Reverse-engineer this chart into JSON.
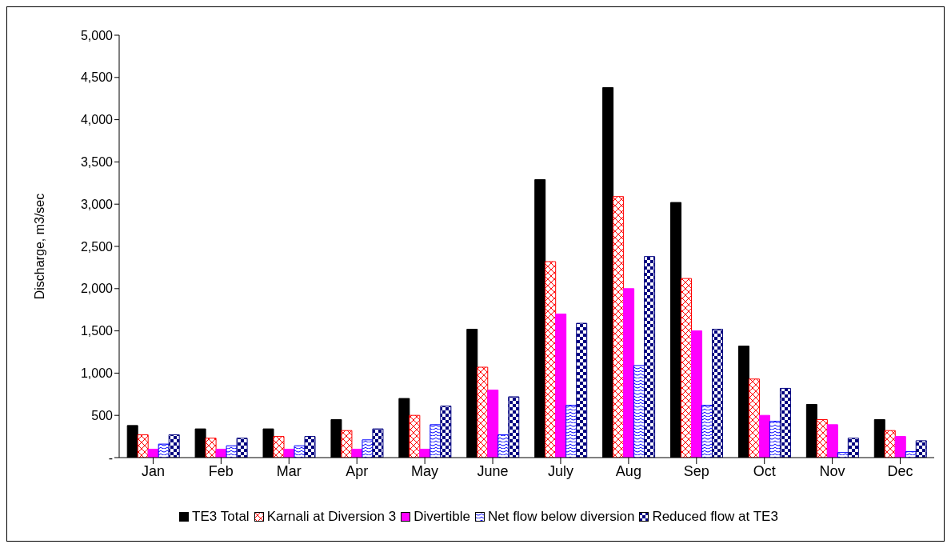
{
  "chart_data": {
    "type": "bar",
    "ylabel": "Discharge, m3/sec",
    "categories": [
      "Jan",
      "Feb",
      "Mar",
      "Apr",
      "May",
      "June",
      "July",
      "Aug",
      "Sep",
      "Oct",
      "Nov",
      "Dec"
    ],
    "series": [
      {
        "name": "TE3 Total",
        "color": "#000000",
        "values": [
          380,
          340,
          340,
          450,
          700,
          1520,
          3290,
          4380,
          3020,
          1320,
          630,
          450
        ]
      },
      {
        "name": "Karnali at Diversion 3",
        "color": "#ff0000",
        "values": [
          270,
          230,
          250,
          320,
          500,
          1070,
          2320,
          3090,
          2120,
          930,
          450,
          320
        ]
      },
      {
        "name": "Divertible",
        "color": "#ff00ff",
        "values": [
          100,
          100,
          100,
          100,
          100,
          800,
          1700,
          2000,
          1500,
          500,
          390,
          250
        ]
      },
      {
        "name": "Net flow below diversion",
        "color": "#0000ff",
        "values": [
          160,
          140,
          140,
          210,
          390,
          270,
          620,
          1090,
          620,
          430,
          60,
          70
        ]
      },
      {
        "name": "Reduced flow at TE3",
        "color": "#000080",
        "values": [
          270,
          230,
          250,
          340,
          610,
          720,
          1590,
          2380,
          1520,
          820,
          230,
          200
        ]
      }
    ],
    "ylim": [
      0,
      5000
    ],
    "yticks": [
      {
        "value": 0,
        "label": "-"
      },
      500,
      {
        "value": 1000,
        "label": "1,000"
      },
      {
        "value": 1500,
        "label": "1,500"
      },
      {
        "value": 2000,
        "label": "2,000"
      },
      {
        "value": 2500,
        "label": "2,500"
      },
      {
        "value": 3000,
        "label": "3,000"
      },
      {
        "value": 3500,
        "label": "3,500"
      },
      {
        "value": 4000,
        "label": "4,000"
      },
      {
        "value": 4500,
        "label": "4,500"
      },
      {
        "value": 5000,
        "label": "5,000"
      }
    ],
    "grid": false,
    "legend": "bottom"
  }
}
